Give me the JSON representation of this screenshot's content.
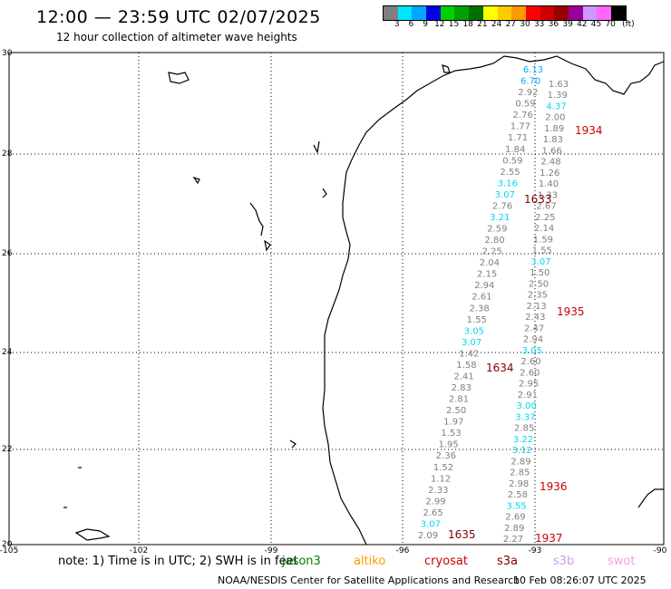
{
  "header": {
    "title": "12:00 — 23:59 UTC 02/07/2025",
    "subtitle": "12 hour collection of altimeter wave heights"
  },
  "colorbar": {
    "colors": [
      "#7f7f7f",
      "#00e5ff",
      "#00a8ff",
      "#0000e0",
      "#00cf00",
      "#00a000",
      "#007000",
      "#ffff00",
      "#ffcc00",
      "#ff9900",
      "#ff0000",
      "#cc0000",
      "#990000",
      "#990099",
      "#cc99ff",
      "#ff66ff",
      "#000000"
    ],
    "labels": [
      "3",
      "6",
      "9",
      "12",
      "15",
      "18",
      "21",
      "24",
      "27",
      "30",
      "33",
      "36",
      "39",
      "42",
      "45",
      "70",
      "(ft)"
    ]
  },
  "axes": {
    "lat_labels": [
      "30",
      "28",
      "26",
      "24",
      "22",
      "20"
    ],
    "lon_labels": [
      "-105",
      "-102",
      "-99",
      "-96",
      "-93",
      "-90"
    ]
  },
  "track_values": {
    "left": [
      "6.13",
      "6.70",
      "2.92",
      "0.59",
      "2.76",
      "1.77",
      "1.71",
      "1.84",
      "0.59",
      "2.55",
      "3.16",
      "3.07",
      "2.76",
      "3.21",
      "2.59",
      "2.80",
      "2.25",
      "2.04",
      "2.15",
      "2.94",
      "2.61",
      "2.38",
      "1.55",
      "3.05",
      "3.07",
      "1.42",
      "1.58",
      "2.41",
      "2.83",
      "2.81",
      "2.50",
      "1.97",
      "1.53",
      "1.95",
      "2.36",
      "1.52",
      "1.12",
      "2.33",
      "2.99",
      "2.65",
      "3.07",
      "2.09"
    ],
    "right": [
      "1.63",
      "1.39",
      "4.37",
      "2.00",
      "1.89",
      "1.83",
      "1.66",
      "2.48",
      "1.26",
      "1.40",
      "1.33",
      "2.67",
      "2.25",
      "2.14",
      "1.59",
      "1.55",
      "3.07",
      "1.50",
      "2.50",
      "2.35",
      "2.13",
      "2.43",
      "2.47",
      "2.94",
      "3.05",
      "2.60",
      "2.60",
      "2.95",
      "2.91",
      "3.00",
      "3.37",
      "2.85",
      "3.22",
      "3.12",
      "2.89",
      "2.85",
      "2.98",
      "2.58",
      "3.55",
      "2.69",
      "2.89",
      "2.27"
    ]
  },
  "track_times": {
    "t1934": "1934",
    "t1633": "1633",
    "t1935": "1935",
    "t1634": "1634",
    "t1936": "1936",
    "t1635": "1635",
    "t1937": "1937"
  },
  "note": {
    "text": "note:  1) Time is in UTC;  2) SWH is in feet"
  },
  "legend": {
    "jason3": "jason3",
    "altiko": "altiko",
    "cryosat": "cryosat",
    "s3a": "s3a",
    "s3b": "s3b",
    "swot": "swot"
  },
  "footer": {
    "credit": "NOAA/NESDIS Center for Satellite Applications and Research",
    "timestamp": "10 Feb 08:26:07 UTC 2025"
  }
}
